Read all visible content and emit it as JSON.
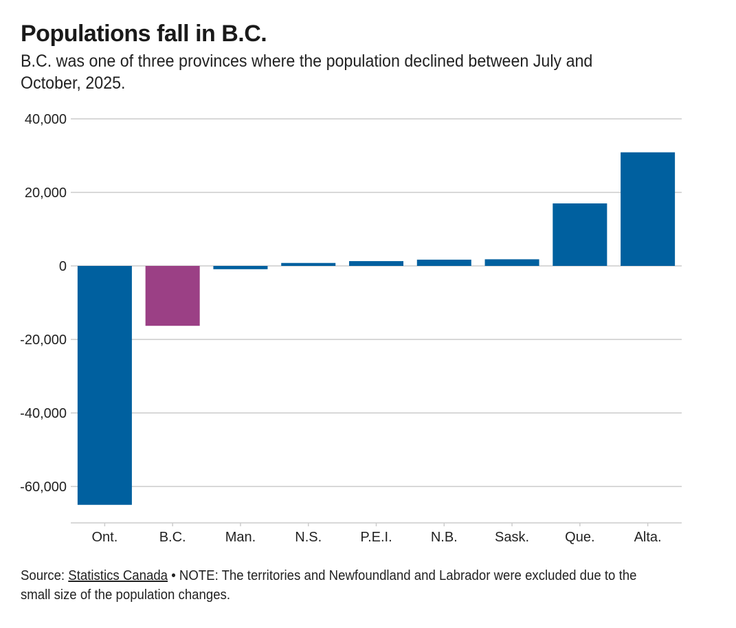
{
  "header": {
    "title": "Populations fall in B.C.",
    "subtitle": "B.C. was one of three provinces where the population declined between July and October, 2025."
  },
  "footer": {
    "source_label": "Source:",
    "source_link": "Statistics Canada",
    "separator": "•",
    "note": "NOTE: The territories and Newfoundland and Labrador were excluded due to the small size of the population changes."
  },
  "colors": {
    "default_bar": "#00609f",
    "highlight_bar": "#9b4085",
    "gridline": "#cccccc",
    "axis": "#cccccc"
  },
  "chart_data": {
    "type": "bar",
    "title": "Populations fall in B.C.",
    "xlabel": "",
    "ylabel": "",
    "categories": [
      "Ont.",
      "B.C.",
      "Man.",
      "N.S.",
      "P.E.I.",
      "N.B.",
      "Sask.",
      "Que.",
      "Alta."
    ],
    "values": [
      -65000,
      -16300,
      -900,
      800,
      1300,
      1700,
      1800,
      17000,
      30900
    ],
    "highlight": [
      "B.C."
    ],
    "ylim": [
      -70000,
      40000
    ],
    "yticks": [
      40000,
      20000,
      0,
      -20000,
      -40000,
      -60000
    ],
    "ytick_labels": [
      "40,000",
      "20,000",
      "0",
      "-20,000",
      "-40,000",
      "-60,000"
    ],
    "grid": true,
    "legend": "none"
  }
}
